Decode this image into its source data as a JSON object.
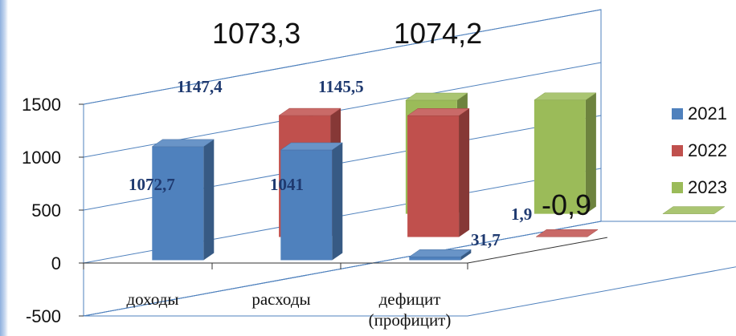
{
  "chart_data": {
    "type": "bar",
    "categories": [
      "доходы",
      "расходы",
      "дефицит (профицит)"
    ],
    "series": [
      {
        "name": "2021",
        "values": [
          1072.7,
          1041,
          31.7
        ],
        "labels": [
          "1072,7",
          "1041",
          "31,7"
        ],
        "color": "#4f81bd"
      },
      {
        "name": "2022",
        "values": [
          1147.4,
          1145.5,
          1.9
        ],
        "labels": [
          "1147,4",
          "1145,5",
          "1,9"
        ],
        "color": "#c0504d"
      },
      {
        "name": "2023",
        "values": [
          1073.3,
          1074.2,
          -0.9
        ],
        "labels": [
          "1073,3",
          "1074,2",
          "-0,9"
        ],
        "color": "#9bbb59"
      }
    ],
    "ylim": [
      -500,
      1500
    ],
    "yticks": [
      "-500",
      "0",
      "500",
      "1000",
      "1500"
    ],
    "grid": true,
    "legend_position": "right",
    "projection": "3d-clustered-column"
  }
}
